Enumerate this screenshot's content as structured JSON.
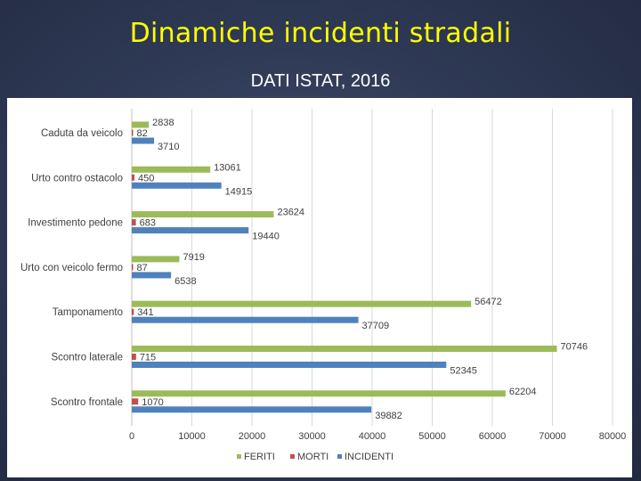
{
  "slide": {
    "title": "Dinamiche incidenti stradali",
    "subtitle": "DATI ISTAT, 2016"
  },
  "colors": {
    "title": "#ffff00",
    "feriti": "#9bbb59",
    "morti": "#c0504d",
    "incidenti": "#4f81bd"
  },
  "chart_data": {
    "type": "bar",
    "orientation": "horizontal",
    "title": "",
    "xlabel": "",
    "ylabel": "",
    "xlim": [
      0,
      80000
    ],
    "x_ticks": [
      "0",
      "10000",
      "20000",
      "30000",
      "40000",
      "50000",
      "60000",
      "70000",
      "80000"
    ],
    "grid": true,
    "legend_position": "bottom",
    "categories": [
      "Caduta da veicolo",
      "Urto contro ostacolo",
      "Investimento pedone",
      "Urto con veicolo fermo",
      "Tamponamento",
      "Scontro laterale",
      "Scontro frontale"
    ],
    "series": [
      {
        "name": "FERITI",
        "color": "#9bbb59",
        "values": [
          2838,
          13061,
          23624,
          7919,
          56472,
          70746,
          62204
        ]
      },
      {
        "name": "MORTI",
        "color": "#c0504d",
        "values": [
          82,
          450,
          683,
          87,
          341,
          715,
          1070
        ]
      },
      {
        "name": "INCIDENTI",
        "color": "#4f81bd",
        "values": [
          3710,
          14915,
          19440,
          6538,
          37709,
          52345,
          39882
        ]
      }
    ]
  }
}
